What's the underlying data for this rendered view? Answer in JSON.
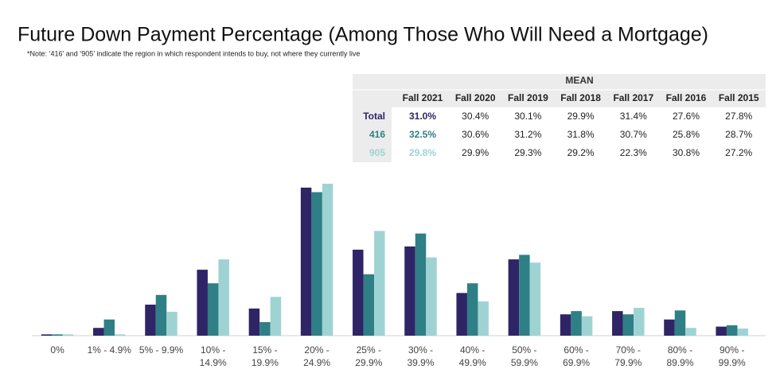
{
  "chart_data": {
    "type": "bar",
    "title": "Future Down Payment Percentage (Among Those Who Will Need a Mortgage)",
    "subtitle": "*Note: ‘416’ and ‘905’ indicate the region in which respondent intends to buy, not where they currently live",
    "categories": [
      "0%",
      "1% - 4.9%",
      "5% - 9.9%",
      "10% - 14.9%",
      "15% - 19.9%",
      "20% - 24.9%",
      "25% - 29.9%",
      "30% - 39.9%",
      "40% - 49.9%",
      "50% - 59.9%",
      "60% - 69.9%",
      "70% - 79.9%",
      "80% - 89.9%",
      "90% - 99.9%"
    ],
    "series": [
      {
        "name": "Total",
        "color": "#2e2466",
        "values": [
          0.2,
          1.2,
          4.8,
          10.2,
          4.2,
          22.9,
          13.3,
          13.8,
          6.6,
          11.8,
          3.3,
          3.8,
          2.5,
          1.4
        ]
      },
      {
        "name": "416",
        "color": "#2f7f86",
        "values": [
          0.2,
          2.5,
          6.3,
          8.1,
          2.1,
          22.2,
          9.5,
          15.8,
          8.1,
          12.5,
          3.8,
          3.3,
          3.9,
          1.6
        ]
      },
      {
        "name": "905",
        "color": "#9fd3d3",
        "values": [
          0.2,
          0.2,
          3.7,
          11.8,
          6.0,
          23.5,
          16.2,
          12.1,
          5.3,
          11.3,
          3.0,
          4.3,
          1.2,
          1.1
        ]
      }
    ]
  },
  "table": {
    "header": "MEAN",
    "columns": [
      "Fall 2021",
      "Fall 2020",
      "Fall 2019",
      "Fall 2018",
      "Fall 2017",
      "Fall 2016",
      "Fall 2015"
    ],
    "rows": [
      [
        "31.0%",
        "30.4%",
        "30.1%",
        "29.9%",
        "31.4%",
        "27.6%",
        "27.8%"
      ],
      [
        "32.5%",
        "30.6%",
        "31.2%",
        "31.8%",
        "30.7%",
        "25.8%",
        "28.7%"
      ],
      [
        "29.8%",
        "29.9%",
        "29.3%",
        "29.2%",
        "22.3%",
        "30.8%",
        "27.2%"
      ]
    ]
  }
}
